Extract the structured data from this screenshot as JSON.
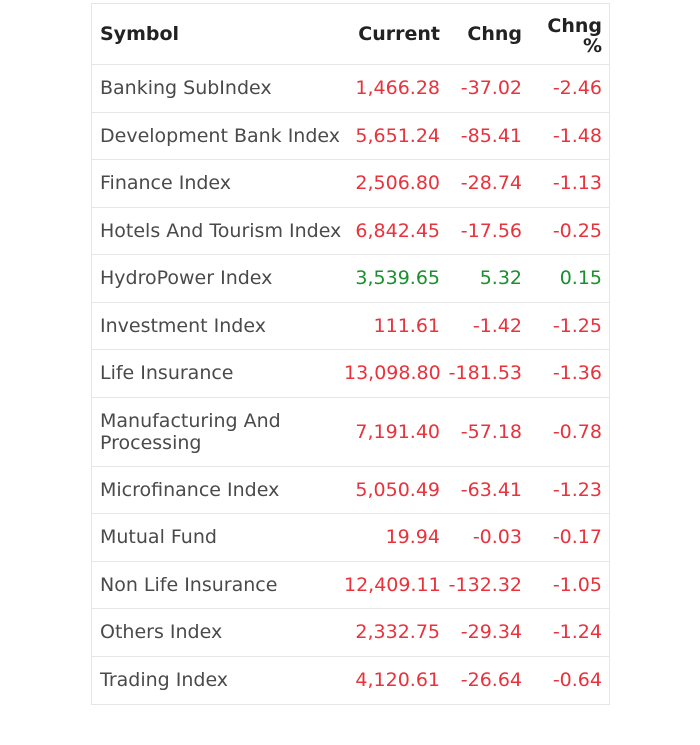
{
  "colors": {
    "negative": "#e8323c",
    "positive": "#1a8f2e",
    "border": "#e6e6e6",
    "text": "#4a4a4a"
  },
  "header": {
    "symbol": "Symbol",
    "current": "Current",
    "chng": "Chng",
    "chng_pct_line1": "Chng",
    "chng_pct_line2": "%"
  },
  "rows": [
    {
      "symbol": "Banking SubIndex",
      "current": "1,466.28",
      "chng": "-37.02",
      "pct": "-2.46",
      "direction": "down"
    },
    {
      "symbol": "Development Bank Index",
      "current": "5,651.24",
      "chng": "-85.41",
      "pct": "-1.48",
      "direction": "down"
    },
    {
      "symbol": "Finance Index",
      "current": "2,506.80",
      "chng": "-28.74",
      "pct": "-1.13",
      "direction": "down"
    },
    {
      "symbol": "Hotels And Tourism Index",
      "current": "6,842.45",
      "chng": "-17.56",
      "pct": "-0.25",
      "direction": "down"
    },
    {
      "symbol": "HydroPower Index",
      "current": "3,539.65",
      "chng": "5.32",
      "pct": "0.15",
      "direction": "up"
    },
    {
      "symbol": "Investment Index",
      "current": "111.61",
      "chng": "-1.42",
      "pct": "-1.25",
      "direction": "down"
    },
    {
      "symbol": "Life Insurance",
      "current": "13,098.80",
      "chng": "-181.53",
      "pct": "-1.36",
      "direction": "down"
    },
    {
      "symbol": "Manufacturing And Processing",
      "current": "7,191.40",
      "chng": "-57.18",
      "pct": "-0.78",
      "direction": "down"
    },
    {
      "symbol": "Microfinance Index",
      "current": "5,050.49",
      "chng": "-63.41",
      "pct": "-1.23",
      "direction": "down"
    },
    {
      "symbol": "Mutual Fund",
      "current": "19.94",
      "chng": "-0.03",
      "pct": "-0.17",
      "direction": "down"
    },
    {
      "symbol": "Non Life Insurance",
      "current": "12,409.11",
      "chng": "-132.32",
      "pct": "-1.05",
      "direction": "down"
    },
    {
      "symbol": "Others Index",
      "current": "2,332.75",
      "chng": "-29.34",
      "pct": "-1.24",
      "direction": "down"
    },
    {
      "symbol": "Trading Index",
      "current": "4,120.61",
      "chng": "-26.64",
      "pct": "-0.64",
      "direction": "down"
    }
  ]
}
